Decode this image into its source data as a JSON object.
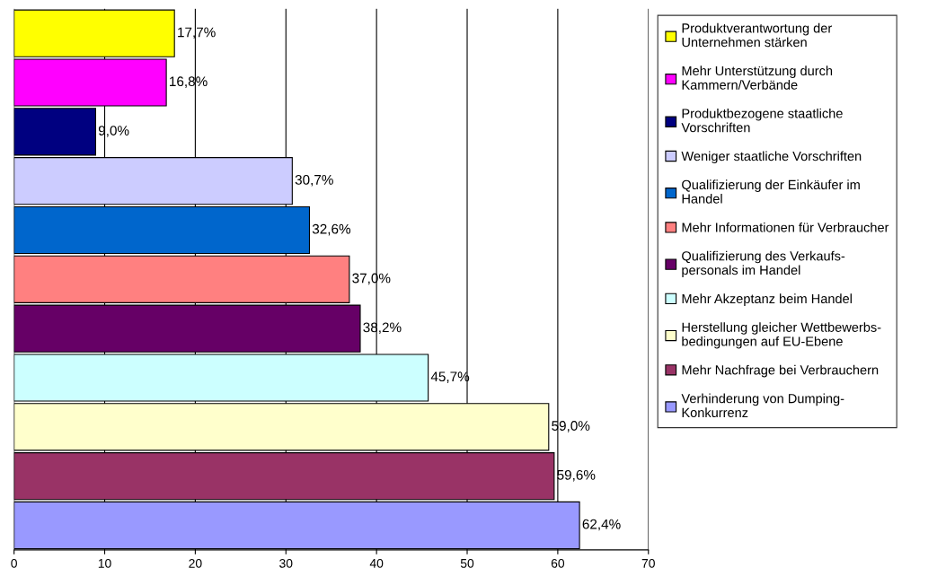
{
  "chart_data": {
    "type": "bar",
    "orientation": "horizontal",
    "categories": [
      null,
      null,
      null,
      null,
      null,
      null,
      null,
      null,
      null,
      null,
      null
    ],
    "xlim": [
      0,
      70
    ],
    "xticks": [
      0,
      10,
      20,
      30,
      40,
      50,
      60,
      70
    ],
    "grid": "x",
    "legend": "right",
    "tick_labels": "x",
    "series": [
      {
        "name": "Produktverantwortung der\nUnternehmen stärken",
        "color": "#ffff00",
        "values": [
          17.7,
          null,
          null,
          null,
          null,
          null,
          null,
          null,
          null,
          null,
          null
        ],
        "value_labels": [
          "17,7%",
          null,
          null,
          null,
          null,
          null,
          null,
          null,
          null,
          null,
          null
        ]
      },
      {
        "name": "Mehr Unterstützung durch\nKammern/Verbände",
        "color": "#ff00ff",
        "values": [
          null,
          16.8,
          null,
          null,
          null,
          null,
          null,
          null,
          null,
          null,
          null
        ],
        "value_labels": [
          null,
          "16,8%",
          null,
          null,
          null,
          null,
          null,
          null,
          null,
          null,
          null
        ]
      },
      {
        "name": "Produktbezogene staatliche\nVorschriften",
        "color": "#000080",
        "values": [
          null,
          null,
          9.0,
          null,
          null,
          null,
          null,
          null,
          null,
          null,
          null
        ],
        "value_labels": [
          null,
          null,
          "9,0%",
          null,
          null,
          null,
          null,
          null,
          null,
          null,
          null
        ]
      },
      {
        "name": "Weniger staatliche Vorschriften",
        "color": "#ccccff",
        "values": [
          null,
          null,
          null,
          30.7,
          null,
          null,
          null,
          null,
          null,
          null,
          null
        ],
        "value_labels": [
          null,
          null,
          null,
          "30,7%",
          null,
          null,
          null,
          null,
          null,
          null,
          null
        ]
      },
      {
        "name": "Qualifizierung der Einkäufer im\nHandel",
        "color": "#0066cc",
        "values": [
          null,
          null,
          null,
          null,
          32.6,
          null,
          null,
          null,
          null,
          null,
          null
        ],
        "value_labels": [
          null,
          null,
          null,
          null,
          "32,6%",
          null,
          null,
          null,
          null,
          null,
          null
        ]
      },
      {
        "name": "Mehr Informationen für Verbraucher",
        "color": "#ff8080",
        "values": [
          null,
          null,
          null,
          null,
          null,
          37.0,
          null,
          null,
          null,
          null,
          null
        ],
        "value_labels": [
          null,
          null,
          null,
          null,
          null,
          "37,0%",
          null,
          null,
          null,
          null,
          null
        ]
      },
      {
        "name": "Qualifizierung des Verkaufs-\npersonals im Handel",
        "color": "#660066",
        "values": [
          null,
          null,
          null,
          null,
          null,
          null,
          38.2,
          null,
          null,
          null,
          null
        ],
        "value_labels": [
          null,
          null,
          null,
          null,
          null,
          null,
          "38,2%",
          null,
          null,
          null,
          null
        ]
      },
      {
        "name": "Mehr Akzeptanz beim Handel",
        "color": "#ccffff",
        "values": [
          null,
          null,
          null,
          null,
          null,
          null,
          null,
          45.7,
          null,
          null,
          null
        ],
        "value_labels": [
          null,
          null,
          null,
          null,
          null,
          null,
          null,
          "45,7%",
          null,
          null,
          null
        ]
      },
      {
        "name": "Herstellung gleicher Wettbewerbs-\nbedingungen auf EU-Ebene",
        "color": "#ffffcc",
        "values": [
          null,
          null,
          null,
          null,
          null,
          null,
          null,
          null,
          59.0,
          null,
          null
        ],
        "value_labels": [
          null,
          null,
          null,
          null,
          null,
          null,
          null,
          null,
          "59,0%",
          null,
          null
        ]
      },
      {
        "name": "Mehr Nachfrage bei Verbrauchern",
        "color": "#993366",
        "values": [
          null,
          null,
          null,
          null,
          null,
          null,
          null,
          null,
          null,
          59.6,
          null
        ],
        "value_labels": [
          null,
          null,
          null,
          null,
          null,
          null,
          null,
          null,
          null,
          "59,6%",
          null
        ]
      },
      {
        "name": "Verhinderung von Dumping-\nKonkurrenz",
        "color": "#9999ff",
        "values": [
          null,
          null,
          null,
          null,
          null,
          null,
          null,
          null,
          null,
          null,
          62.4
        ],
        "value_labels": [
          null,
          null,
          null,
          null,
          null,
          null,
          null,
          null,
          null,
          null,
          "62,4%"
        ]
      }
    ]
  }
}
